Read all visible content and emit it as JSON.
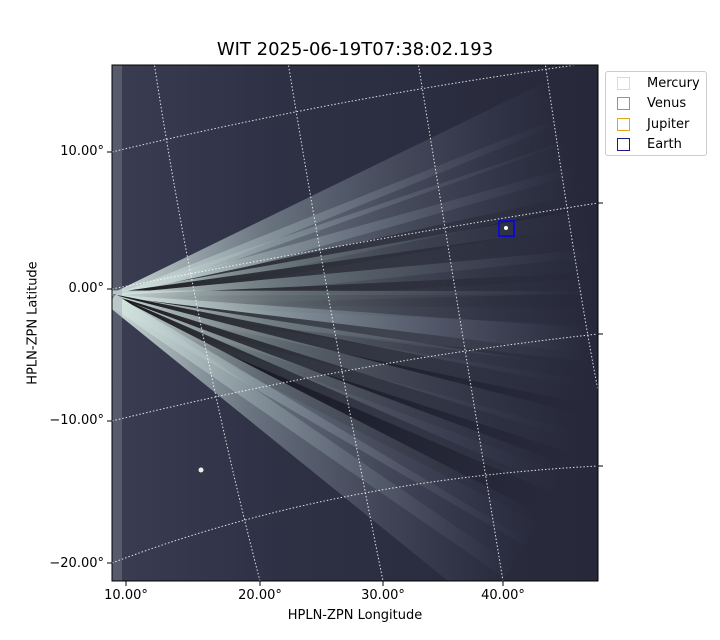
{
  "title": "WIT 2025-06-19T07:38:02.193",
  "axes": {
    "xlabel": "HPLN-ZPN Longitude",
    "ylabel": "HPLN-ZPN Latitude",
    "x_ticks": [
      "10.00°",
      "20.00°",
      "30.00°",
      "40.00°"
    ],
    "y_ticks": [
      "10.00°",
      "0.00°",
      "−10.00°",
      "−20.00°"
    ]
  },
  "grid": "on",
  "legend": {
    "placement": "outside-top-right",
    "items": [
      {
        "label": "Mercury",
        "color": "#d9d9d9"
      },
      {
        "label": "Venus",
        "color": "#e07b39"
      },
      {
        "label": "Jupiter",
        "color": "#e3a61a"
      },
      {
        "label": "Earth",
        "color": "#1a1a80"
      }
    ]
  },
  "markers": [
    {
      "name": "Earth",
      "color": "#0000ff"
    }
  ],
  "image": {
    "colormap": "bone",
    "background": "#2a2a3a"
  }
}
